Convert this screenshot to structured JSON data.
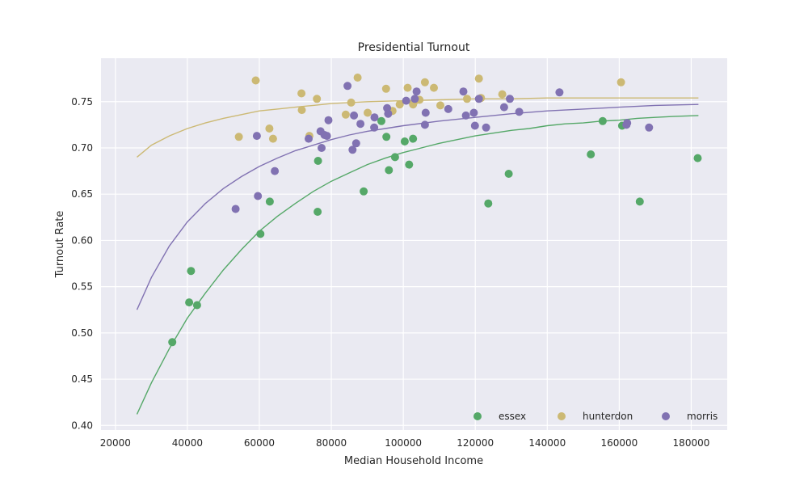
{
  "chart_data": {
    "type": "scatter",
    "title": "Presidential Turnout",
    "xlabel": "Median Household Income",
    "ylabel": "Turnout Rate",
    "xlim": [
      16000,
      190000
    ],
    "ylim": [
      0.395,
      0.797
    ],
    "xticks": [
      20000,
      40000,
      60000,
      80000,
      100000,
      120000,
      140000,
      160000,
      180000
    ],
    "yticks": [
      0.4,
      0.45,
      0.5,
      0.55,
      0.6,
      0.65,
      0.7,
      0.75
    ],
    "grid": true,
    "legend_position": "lower-right",
    "series": [
      {
        "name": "essex",
        "color": "#55a868",
        "points": [
          [
            35800,
            0.49
          ],
          [
            40500,
            0.533
          ],
          [
            41000,
            0.567
          ],
          [
            42700,
            0.53
          ],
          [
            60300,
            0.607
          ],
          [
            62900,
            0.642
          ],
          [
            76300,
            0.686
          ],
          [
            76200,
            0.631
          ],
          [
            89000,
            0.653
          ],
          [
            93900,
            0.729
          ],
          [
            95300,
            0.712
          ],
          [
            96000,
            0.676
          ],
          [
            97700,
            0.69
          ],
          [
            100400,
            0.707
          ],
          [
            101600,
            0.682
          ],
          [
            102700,
            0.71
          ],
          [
            123600,
            0.64
          ],
          [
            129300,
            0.672
          ],
          [
            152100,
            0.693
          ],
          [
            155400,
            0.729
          ],
          [
            160800,
            0.724
          ],
          [
            165700,
            0.642
          ],
          [
            181800,
            0.689
          ]
        ],
        "curve": [
          [
            26000,
            0.412
          ],
          [
            30000,
            0.446
          ],
          [
            35000,
            0.483
          ],
          [
            40000,
            0.516
          ],
          [
            45000,
            0.543
          ],
          [
            50000,
            0.568
          ],
          [
            55000,
            0.59
          ],
          [
            60000,
            0.61
          ],
          [
            65000,
            0.626
          ],
          [
            70000,
            0.64
          ],
          [
            75000,
            0.653
          ],
          [
            80000,
            0.664
          ],
          [
            85000,
            0.673
          ],
          [
            90000,
            0.682
          ],
          [
            95000,
            0.689
          ],
          [
            100000,
            0.695
          ],
          [
            105000,
            0.7
          ],
          [
            110000,
            0.705
          ],
          [
            115000,
            0.709
          ],
          [
            120000,
            0.713
          ],
          [
            125000,
            0.716
          ],
          [
            130000,
            0.719
          ],
          [
            135000,
            0.721
          ],
          [
            140000,
            0.724
          ],
          [
            145000,
            0.726
          ],
          [
            150000,
            0.727
          ],
          [
            155000,
            0.729
          ],
          [
            160000,
            0.73
          ],
          [
            165000,
            0.732
          ],
          [
            170000,
            0.733
          ],
          [
            175000,
            0.734
          ],
          [
            182000,
            0.735
          ]
        ]
      },
      {
        "name": "hunterdon",
        "color": "#ccb974",
        "points": [
          [
            54300,
            0.712
          ],
          [
            59000,
            0.773
          ],
          [
            62800,
            0.721
          ],
          [
            63800,
            0.71
          ],
          [
            71700,
            0.759
          ],
          [
            71800,
            0.741
          ],
          [
            73900,
            0.713
          ],
          [
            76000,
            0.753
          ],
          [
            84000,
            0.736
          ],
          [
            85500,
            0.749
          ],
          [
            87300,
            0.776
          ],
          [
            90100,
            0.738
          ],
          [
            95200,
            0.764
          ],
          [
            97000,
            0.74
          ],
          [
            99000,
            0.747
          ],
          [
            101200,
            0.765
          ],
          [
            102700,
            0.747
          ],
          [
            103000,
            0.75
          ],
          [
            104500,
            0.752
          ],
          [
            106000,
            0.771
          ],
          [
            108500,
            0.765
          ],
          [
            110300,
            0.746
          ],
          [
            117700,
            0.753
          ],
          [
            121000,
            0.775
          ],
          [
            121600,
            0.754
          ],
          [
            127500,
            0.758
          ],
          [
            160500,
            0.771
          ]
        ],
        "curve": [
          [
            26000,
            0.69
          ],
          [
            30000,
            0.703
          ],
          [
            35000,
            0.713
          ],
          [
            40000,
            0.721
          ],
          [
            45000,
            0.727
          ],
          [
            50000,
            0.732
          ],
          [
            55000,
            0.736
          ],
          [
            60000,
            0.74
          ],
          [
            65000,
            0.742
          ],
          [
            70000,
            0.744
          ],
          [
            75000,
            0.746
          ],
          [
            80000,
            0.748
          ],
          [
            90000,
            0.75
          ],
          [
            100000,
            0.751
          ],
          [
            110000,
            0.752
          ],
          [
            120000,
            0.753
          ],
          [
            130000,
            0.753
          ],
          [
            140000,
            0.754
          ],
          [
            150000,
            0.754
          ],
          [
            160000,
            0.754
          ],
          [
            170000,
            0.754
          ],
          [
            182000,
            0.754
          ]
        ]
      },
      {
        "name": "morris",
        "color": "#8172b2",
        "points": [
          [
            53400,
            0.634
          ],
          [
            59300,
            0.713
          ],
          [
            59600,
            0.648
          ],
          [
            64300,
            0.675
          ],
          [
            73700,
            0.71
          ],
          [
            77000,
            0.718
          ],
          [
            77300,
            0.7
          ],
          [
            78100,
            0.714
          ],
          [
            78800,
            0.713
          ],
          [
            79200,
            0.73
          ],
          [
            84500,
            0.767
          ],
          [
            85900,
            0.698
          ],
          [
            86300,
            0.735
          ],
          [
            86900,
            0.705
          ],
          [
            88100,
            0.726
          ],
          [
            91900,
            0.722
          ],
          [
            92000,
            0.733
          ],
          [
            95500,
            0.743
          ],
          [
            95800,
            0.737
          ],
          [
            100800,
            0.751
          ],
          [
            103200,
            0.753
          ],
          [
            103700,
            0.761
          ],
          [
            106000,
            0.725
          ],
          [
            106200,
            0.738
          ],
          [
            112500,
            0.742
          ],
          [
            116700,
            0.761
          ],
          [
            117400,
            0.735
          ],
          [
            119600,
            0.738
          ],
          [
            119900,
            0.724
          ],
          [
            121000,
            0.753
          ],
          [
            123000,
            0.722
          ],
          [
            128000,
            0.744
          ],
          [
            129600,
            0.753
          ],
          [
            132200,
            0.739
          ],
          [
            143400,
            0.76
          ],
          [
            162000,
            0.725
          ],
          [
            162200,
            0.727
          ],
          [
            168300,
            0.722
          ]
        ],
        "curve": [
          [
            26000,
            0.525
          ],
          [
            30000,
            0.56
          ],
          [
            35000,
            0.594
          ],
          [
            40000,
            0.62
          ],
          [
            45000,
            0.64
          ],
          [
            50000,
            0.656
          ],
          [
            55000,
            0.669
          ],
          [
            60000,
            0.68
          ],
          [
            65000,
            0.689
          ],
          [
            70000,
            0.697
          ],
          [
            75000,
            0.703
          ],
          [
            80000,
            0.709
          ],
          [
            85000,
            0.714
          ],
          [
            90000,
            0.718
          ],
          [
            95000,
            0.721
          ],
          [
            100000,
            0.724
          ],
          [
            110000,
            0.729
          ],
          [
            120000,
            0.733
          ],
          [
            130000,
            0.737
          ],
          [
            140000,
            0.74
          ],
          [
            150000,
            0.742
          ],
          [
            160000,
            0.744
          ],
          [
            170000,
            0.746
          ],
          [
            182000,
            0.747
          ]
        ]
      }
    ]
  }
}
